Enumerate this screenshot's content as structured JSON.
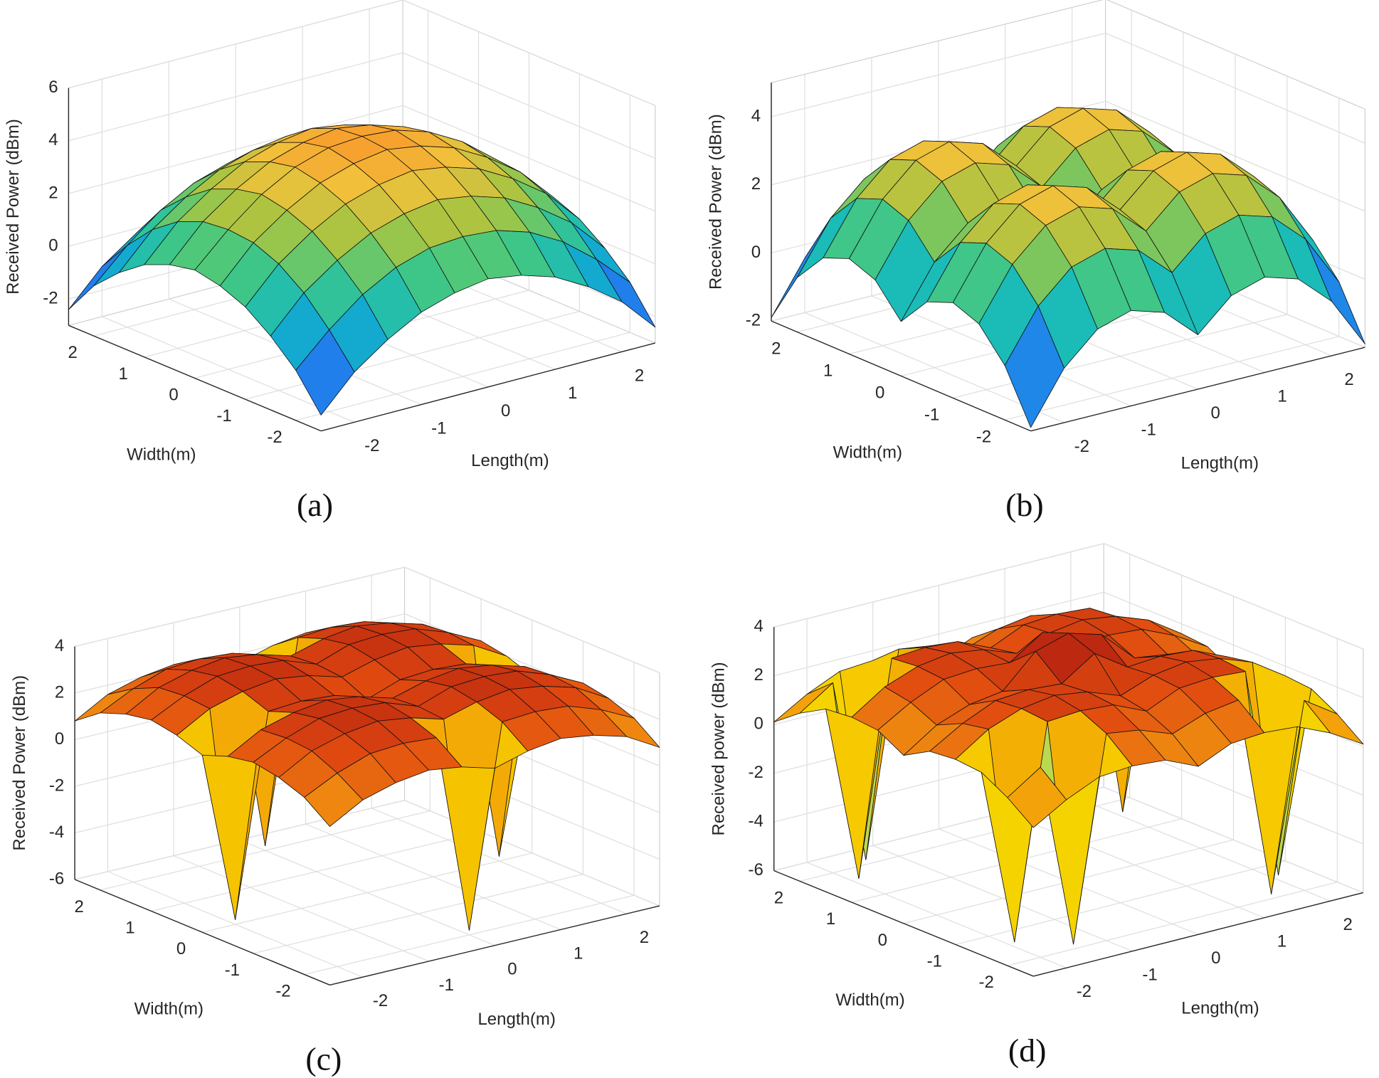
{
  "chart_data": [
    {
      "type": "surface",
      "caption": "(a)",
      "zlabel": "Received Power (dBm)",
      "xlabel": "Length(m)",
      "ylabel": "Width(m)",
      "x": [
        -2.5,
        -2,
        -1.5,
        -1,
        -0.5,
        0,
        0.5,
        1,
        1.5,
        2,
        2.5
      ],
      "y": [
        -2.5,
        -2,
        -1.5,
        -1,
        -0.5,
        0,
        0.5,
        1,
        1.5,
        2,
        2.5
      ],
      "z": [
        [
          -2.4,
          -1.1,
          -0.2,
          0.5,
          0.9,
          1.1,
          0.9,
          0.5,
          -0.2,
          -1.1,
          -2.4
        ],
        [
          -1.1,
          0.1,
          1.1,
          1.8,
          2.2,
          2.3,
          2.2,
          1.8,
          1.1,
          0.1,
          -1.1
        ],
        [
          -0.2,
          1.1,
          2.0,
          2.7,
          3.1,
          3.3,
          3.1,
          2.7,
          2.0,
          1.1,
          -0.2
        ],
        [
          0.5,
          1.8,
          2.7,
          3.4,
          3.8,
          4.0,
          3.8,
          3.4,
          2.7,
          1.8,
          0.5
        ],
        [
          0.9,
          2.2,
          3.1,
          3.8,
          4.2,
          4.4,
          4.2,
          3.8,
          3.1,
          2.2,
          0.9
        ],
        [
          1.1,
          2.3,
          3.3,
          4.0,
          4.4,
          4.5,
          4.4,
          4.0,
          3.3,
          2.3,
          1.1
        ],
        [
          0.9,
          2.2,
          3.1,
          3.8,
          4.2,
          4.4,
          4.2,
          3.8,
          3.1,
          2.2,
          0.9
        ],
        [
          0.5,
          1.8,
          2.7,
          3.4,
          3.8,
          4.0,
          3.8,
          3.4,
          2.7,
          1.8,
          0.5
        ],
        [
          -0.2,
          1.1,
          2.0,
          2.7,
          3.1,
          3.3,
          3.1,
          2.7,
          2.0,
          1.1,
          -0.2
        ],
        [
          -1.1,
          0.1,
          1.1,
          1.8,
          2.2,
          2.3,
          2.2,
          1.8,
          1.1,
          0.1,
          -1.1
        ],
        [
          -2.4,
          -1.1,
          -0.2,
          0.5,
          0.9,
          1.1,
          0.9,
          0.5,
          -0.2,
          -1.1,
          -2.4
        ]
      ],
      "xlim": [
        -2.5,
        2.5
      ],
      "ylim": [
        -2.5,
        2.5
      ],
      "zlim": [
        -3,
        6
      ],
      "xticks": [
        -2,
        -1,
        0,
        1,
        2
      ],
      "yticks": [
        -2,
        -1,
        0,
        1,
        2
      ],
      "zticks": [
        -2,
        0,
        2,
        4,
        6
      ],
      "grid": true,
      "colormap": [
        "#3e26a8",
        "#2f5df9",
        "#1a90e5",
        "#10b8c5",
        "#45c880",
        "#a7c442",
        "#f1c13a",
        "#fb8a26",
        "#e03a1a"
      ]
    },
    {
      "type": "surface",
      "caption": "(b)",
      "zlabel": "Received Power (dBm)",
      "xlabel": "Length(m)",
      "ylabel": "Width(m)",
      "x": [
        -2.5,
        -2,
        -1.5,
        -1,
        -0.5,
        0,
        0.5,
        1,
        1.5,
        2,
        2.5
      ],
      "y": [
        -2.5,
        -2,
        -1.5,
        -1,
        -0.5,
        0,
        0.5,
        1,
        1.5,
        2,
        2.5
      ],
      "z": [
        [
          -1.9,
          -0.4,
          0.5,
          0.8,
          0.5,
          -0.4,
          0.5,
          0.8,
          0.5,
          -0.4,
          -1.9
        ],
        [
          -0.4,
          1.1,
          2.0,
          2.3,
          2.0,
          1.1,
          2.0,
          2.3,
          2.0,
          1.1,
          -0.4
        ],
        [
          0.5,
          2.0,
          2.9,
          3.2,
          2.9,
          2.0,
          2.9,
          3.2,
          2.9,
          2.0,
          0.5
        ],
        [
          0.8,
          2.3,
          3.2,
          3.5,
          3.2,
          2.3,
          3.2,
          3.5,
          3.2,
          2.3,
          0.8
        ],
        [
          0.5,
          2.0,
          2.9,
          3.2,
          2.9,
          2.0,
          2.9,
          3.2,
          2.9,
          2.0,
          0.5
        ],
        [
          -0.4,
          1.1,
          2.0,
          2.3,
          2.0,
          1.1,
          2.0,
          2.3,
          2.0,
          1.1,
          -0.4
        ],
        [
          0.5,
          2.0,
          2.9,
          3.2,
          2.9,
          2.0,
          2.9,
          3.2,
          2.9,
          2.0,
          0.5
        ],
        [
          0.8,
          2.3,
          3.2,
          3.5,
          3.2,
          2.3,
          3.2,
          3.5,
          3.2,
          2.3,
          0.8
        ],
        [
          0.5,
          2.0,
          2.9,
          3.2,
          2.9,
          2.0,
          2.9,
          3.2,
          2.9,
          2.0,
          0.5
        ],
        [
          -0.4,
          1.1,
          2.0,
          2.3,
          2.0,
          1.1,
          2.0,
          2.3,
          2.0,
          1.1,
          -0.4
        ],
        [
          -1.9,
          -0.4,
          0.5,
          0.8,
          0.5,
          -0.4,
          0.5,
          0.8,
          0.5,
          -0.4,
          -1.9
        ]
      ],
      "xlim": [
        -2.5,
        2.5
      ],
      "ylim": [
        -2.5,
        2.5
      ],
      "zlim": [
        -2,
        5
      ],
      "xticks": [
        -2,
        -1,
        0,
        1,
        2
      ],
      "yticks": [
        -2,
        -1,
        0,
        1,
        2
      ],
      "zticks": [
        -2,
        0,
        2,
        4
      ],
      "grid": true,
      "colormap": [
        "#3e26a8",
        "#2f5df9",
        "#1a90e5",
        "#10b8c5",
        "#45c880",
        "#a7c442",
        "#f1c13a",
        "#fb8a26",
        "#e03a1a"
      ]
    },
    {
      "type": "surface",
      "caption": "(c)",
      "zlabel": "Received Power (dBm)",
      "xlabel": "Length(m)",
      "ylabel": "Width(m)",
      "x": [
        -2.5,
        -2,
        -1.5,
        -1,
        -0.5,
        0,
        0.5,
        1,
        1.5,
        2,
        2.5
      ],
      "y": [
        -2.5,
        -2,
        -1.5,
        -1,
        -0.5,
        0,
        0.5,
        1,
        1.5,
        2,
        2.5
      ],
      "z": [
        [
          0.8,
          1.6,
          2.0,
          2.2,
          2.0,
          1.6,
          2.0,
          2.2,
          2.0,
          1.6,
          0.8
        ],
        [
          1.6,
          2.3,
          2.8,
          2.9,
          2.8,
          -5.8,
          2.8,
          2.9,
          2.8,
          2.3,
          1.6
        ],
        [
          2.0,
          2.8,
          3.2,
          3.4,
          3.2,
          2.8,
          3.2,
          3.4,
          3.2,
          2.8,
          2.0
        ],
        [
          2.2,
          2.9,
          3.4,
          3.5,
          3.4,
          2.9,
          3.4,
          3.5,
          3.4,
          2.9,
          2.2
        ],
        [
          2.0,
          2.8,
          3.2,
          3.4,
          3.2,
          2.8,
          3.2,
          3.4,
          3.2,
          2.8,
          2.0
        ],
        [
          1.6,
          -5.8,
          2.8,
          2.9,
          2.8,
          2.3,
          2.8,
          2.9,
          2.8,
          -5.8,
          1.6
        ],
        [
          2.0,
          2.8,
          3.2,
          3.4,
          3.2,
          2.8,
          3.2,
          3.4,
          3.2,
          2.8,
          2.0
        ],
        [
          2.2,
          2.9,
          3.4,
          3.5,
          3.4,
          2.9,
          3.4,
          3.5,
          3.4,
          2.9,
          2.2
        ],
        [
          2.0,
          2.8,
          3.2,
          3.4,
          3.2,
          2.8,
          3.2,
          3.4,
          3.2,
          2.8,
          2.0
        ],
        [
          1.6,
          2.3,
          2.8,
          2.9,
          2.8,
          -5.8,
          2.8,
          2.9,
          2.8,
          2.3,
          1.6
        ],
        [
          0.8,
          1.6,
          2.0,
          2.2,
          2.0,
          1.6,
          2.0,
          2.2,
          2.0,
          1.6,
          0.8
        ]
      ],
      "xlim": [
        -2.5,
        2.5
      ],
      "ylim": [
        -2.5,
        2.5
      ],
      "zlim": [
        -6,
        4
      ],
      "xticks": [
        -2,
        -1,
        0,
        1,
        2
      ],
      "yticks": [
        -2,
        -1,
        0,
        1,
        2
      ],
      "zticks": [
        -6,
        -4,
        -2,
        0,
        2,
        4
      ],
      "grid": true,
      "colormap": [
        "#1b2d8c",
        "#2a5fd0",
        "#3fb0e0",
        "#8fd08a",
        "#f5e400",
        "#f6c000",
        "#f08a10",
        "#e04a10",
        "#b01c10"
      ]
    },
    {
      "type": "surface",
      "caption": "(d)",
      "zlabel": "Received power (dBm)",
      "xlabel": "Length(m)",
      "ylabel": "Width(m)",
      "x": [
        -2.5,
        -2,
        -1.5,
        -1,
        -0.5,
        0,
        0.5,
        1,
        1.5,
        2,
        2.5
      ],
      "y": [
        -2.5,
        -2,
        -1.5,
        -1,
        -0.5,
        0,
        0.5,
        1,
        1.5,
        2,
        2.5
      ],
      "z": [
        [
          0.1,
          0.9,
          1.5,
          1.6,
          1.5,
          0.9,
          1.5,
          1.6,
          1.5,
          0.9,
          0.1
        ],
        [
          0.9,
          1.8,
          -5.8,
          2.5,
          2.3,
          1.8,
          2.3,
          2.5,
          -5.8,
          1.8,
          0.9
        ],
        [
          1.5,
          -5.8,
          2.9,
          3.0,
          2.9,
          2.3,
          2.9,
          3.0,
          2.9,
          -5.8,
          1.5
        ],
        [
          1.6,
          2.5,
          3.0,
          3.2,
          3.0,
          2.5,
          3.0,
          3.2,
          3.0,
          2.5,
          1.6
        ],
        [
          1.5,
          2.3,
          2.9,
          3.0,
          2.9,
          3.8,
          2.9,
          3.0,
          2.9,
          2.3,
          1.5
        ],
        [
          0.9,
          1.8,
          2.3,
          2.5,
          3.8,
          4.2,
          3.8,
          2.5,
          2.3,
          1.8,
          0.9
        ],
        [
          1.5,
          2.3,
          2.9,
          3.0,
          2.9,
          3.8,
          2.9,
          3.0,
          2.9,
          2.3,
          1.5
        ],
        [
          1.6,
          2.5,
          3.0,
          3.2,
          3.0,
          2.5,
          3.0,
          3.2,
          3.0,
          2.5,
          1.6
        ],
        [
          1.5,
          -5.8,
          2.9,
          3.0,
          2.9,
          2.3,
          2.9,
          3.0,
          2.9,
          -5.8,
          1.5
        ],
        [
          0.9,
          1.8,
          -5.8,
          2.5,
          2.3,
          1.8,
          2.3,
          2.5,
          -5.8,
          1.8,
          0.9
        ],
        [
          0.1,
          0.9,
          1.5,
          1.6,
          1.5,
          0.9,
          1.5,
          1.6,
          1.5,
          0.9,
          0.1
        ]
      ],
      "xlim": [
        -2.5,
        2.5
      ],
      "ylim": [
        -2.5,
        2.5
      ],
      "zlim": [
        -6,
        4
      ],
      "xticks": [
        -2,
        -1,
        0,
        1,
        2
      ],
      "yticks": [
        -2,
        -1,
        0,
        1,
        2
      ],
      "zticks": [
        -6,
        -4,
        -2,
        0,
        2,
        4
      ],
      "grid": true,
      "colormap": [
        "#1b2d8c",
        "#2a5fd0",
        "#3fb0e0",
        "#8fd08a",
        "#f5e400",
        "#f6c000",
        "#f08a10",
        "#e04a10",
        "#b01c10"
      ]
    }
  ]
}
